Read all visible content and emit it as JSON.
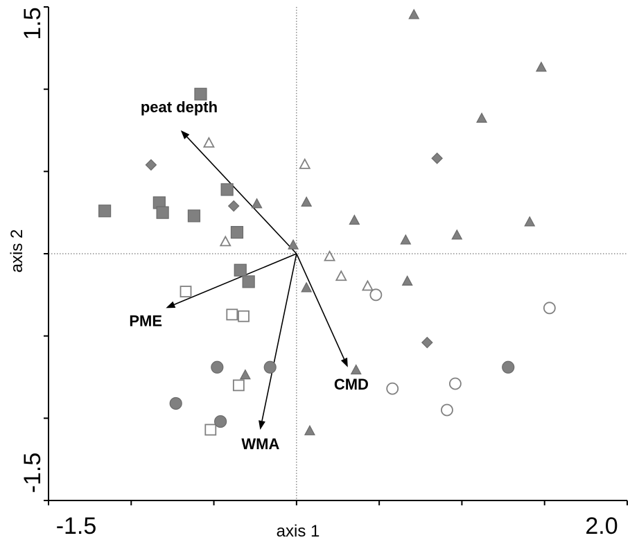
{
  "chart_data": {
    "type": "scatter",
    "xlabel": "axis 1",
    "ylabel": "axis 2",
    "xlim": [
      -1.5,
      2.0
    ],
    "ylim": [
      -1.5,
      1.5
    ],
    "x_tick_labels": [
      "-1.5",
      "2.0"
    ],
    "y_tick_labels": [
      "1.5",
      "-1.5"
    ],
    "zero_lines": "dotted",
    "grid": false,
    "colors": {
      "filled": "#808080",
      "outline": "#808080",
      "vector": "#000000"
    },
    "series": [
      {
        "marker": "square",
        "fill": "filled",
        "points": [
          [
            -0.58,
            0.97
          ],
          [
            -1.16,
            0.26
          ],
          [
            -0.83,
            0.31
          ],
          [
            -0.81,
            0.25
          ],
          [
            -0.62,
            0.23
          ],
          [
            -0.42,
            0.39
          ],
          [
            -0.36,
            0.13
          ],
          [
            -0.34,
            -0.1
          ],
          [
            -0.29,
            -0.17
          ]
        ]
      },
      {
        "marker": "square",
        "fill": "open",
        "points": [
          [
            -0.67,
            -0.23
          ],
          [
            -0.39,
            -0.37
          ],
          [
            -0.32,
            -0.38
          ],
          [
            -0.35,
            -0.8
          ],
          [
            -0.52,
            -1.07
          ]
        ]
      },
      {
        "marker": "triangle",
        "fill": "filled",
        "points": [
          [
            0.71,
            1.45
          ],
          [
            1.48,
            1.13
          ],
          [
            1.12,
            0.82
          ],
          [
            -0.24,
            0.3
          ],
          [
            0.06,
            0.31
          ],
          [
            0.35,
            0.2
          ],
          [
            0.66,
            0.08
          ],
          [
            0.97,
            0.11
          ],
          [
            1.41,
            0.19
          ],
          [
            -0.02,
            0.05
          ],
          [
            0.06,
            -0.21
          ],
          [
            0.67,
            -0.17
          ],
          [
            0.36,
            -0.71
          ],
          [
            -0.31,
            -0.74
          ],
          [
            0.08,
            -1.08
          ]
        ]
      },
      {
        "marker": "triangle",
        "fill": "open",
        "points": [
          [
            -0.53,
            0.67
          ],
          [
            0.05,
            0.54
          ],
          [
            -0.43,
            0.07
          ],
          [
            0.2,
            -0.02
          ],
          [
            0.27,
            -0.14
          ],
          [
            0.43,
            -0.2
          ]
        ]
      },
      {
        "marker": "diamond",
        "fill": "filled",
        "points": [
          [
            -0.88,
            0.54
          ],
          [
            -0.38,
            0.29
          ],
          [
            0.85,
            0.58
          ],
          [
            0.79,
            -0.54
          ]
        ]
      },
      {
        "marker": "circle",
        "fill": "filled",
        "points": [
          [
            -0.48,
            -0.69
          ],
          [
            -0.16,
            -0.69
          ],
          [
            -0.73,
            -0.91
          ],
          [
            -0.46,
            -1.02
          ],
          [
            1.28,
            -0.69
          ]
        ]
      },
      {
        "marker": "circle",
        "fill": "open",
        "points": [
          [
            0.48,
            -0.25
          ],
          [
            1.53,
            -0.33
          ],
          [
            0.58,
            -0.82
          ],
          [
            0.96,
            -0.79
          ],
          [
            0.91,
            -0.95
          ]
        ]
      }
    ],
    "vectors": [
      {
        "label": "peat depth",
        "x": -0.7,
        "y": 0.75
      },
      {
        "label": "PME",
        "x": -0.79,
        "y": -0.33
      },
      {
        "label": "WMA",
        "x": -0.22,
        "y": -1.07
      },
      {
        "label": "CMD",
        "x": 0.31,
        "y": -0.69
      }
    ]
  }
}
